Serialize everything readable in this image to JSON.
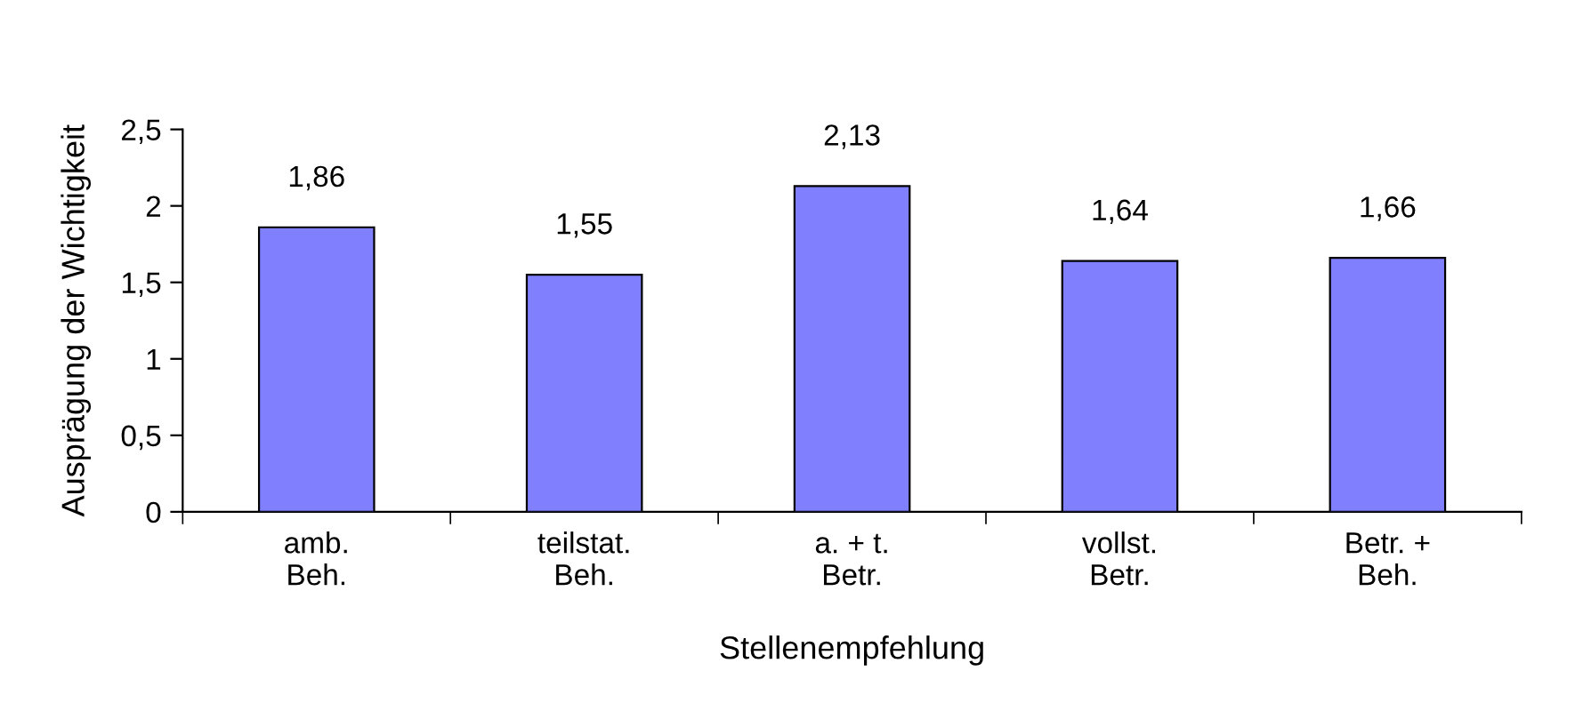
{
  "chart_data": {
    "type": "bar",
    "xlabel": "Stellenempfehlung",
    "ylabel": "Ausprägung der Wichtigkeit",
    "categories": [
      "amb.\nBeh.",
      "teilstat.\nBeh.",
      "a. + t.\nBetr.",
      "vollst.\nBetr.",
      "Betr. +\nBeh."
    ],
    "values": [
      1.86,
      1.55,
      2.13,
      1.64,
      1.66
    ],
    "value_labels": [
      "1,86",
      "1,55",
      "2,13",
      "1,64",
      "1,66"
    ],
    "color": "#8080ff",
    "ylim": [
      0,
      2.5
    ],
    "yticks": [
      0,
      {
        "value": 0.5,
        "label": "0,5"
      },
      1,
      {
        "value": 1.5,
        "label": "1,5"
      },
      2,
      {
        "value": 2.5,
        "label": "2,5"
      }
    ],
    "grid": false,
    "legend": false
  }
}
